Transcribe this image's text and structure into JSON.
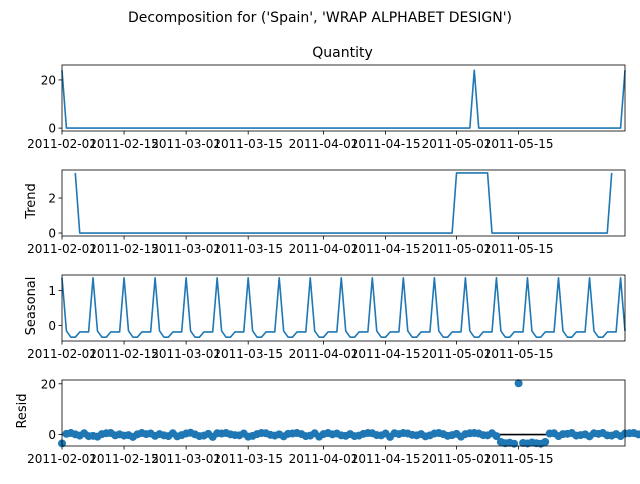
{
  "figure": {
    "suptitle": "Decomposition for ('Spain', 'WRAP ALPHABET DESIGN')"
  },
  "chart_data": [
    {
      "type": "line",
      "title": "Quantity",
      "ylabel": "",
      "x_start": "2011-02-01",
      "x_end": "2011-06-08",
      "xticks": [
        "2011-02-01",
        "2011-02-15",
        "2011-03-01",
        "2011-03-15",
        "2011-04-01",
        "2011-04-15",
        "2011-05-01",
        "2011-05-15"
      ],
      "yticks": [
        0,
        20
      ],
      "ylim": [
        -1.2,
        26.2
      ],
      "series": [
        {
          "color": "#1f77b4",
          "points": [
            [
              "2011-02-01",
              24
            ],
            [
              "2011-02-02",
              0
            ],
            [
              "2011-05-04",
              0
            ],
            [
              "2011-05-05",
              24
            ],
            [
              "2011-05-06",
              0
            ],
            [
              "2011-06-07",
              0
            ],
            [
              "2011-06-08",
              24
            ]
          ]
        }
      ]
    },
    {
      "type": "line",
      "title": "",
      "ylabel": "Trend",
      "x_start": "2011-02-01",
      "x_end": "2011-06-08",
      "xticks": [
        "2011-02-01",
        "2011-02-15",
        "2011-03-01",
        "2011-03-15",
        "2011-04-01",
        "2011-04-15",
        "2011-05-01",
        "2011-05-15"
      ],
      "yticks": [
        0,
        2
      ],
      "ylim": [
        -0.17,
        3.6
      ],
      "series": [
        {
          "color": "#1f77b4",
          "points": [
            [
              "2011-02-04",
              3.43
            ],
            [
              "2011-02-05",
              0
            ],
            [
              "2011-04-30",
              0
            ],
            [
              "2011-05-01",
              3.43
            ],
            [
              "2011-05-08",
              3.43
            ],
            [
              "2011-05-09",
              0
            ],
            [
              "2011-06-04",
              0
            ],
            [
              "2011-06-05",
              3.43
            ]
          ]
        }
      ]
    },
    {
      "type": "line",
      "title": "",
      "ylabel": "Seasonal",
      "x_start": "2011-02-01",
      "x_end": "2011-06-08",
      "xticks": [
        "2011-02-01",
        "2011-02-15",
        "2011-03-01",
        "2011-03-15",
        "2011-04-01",
        "2011-04-15",
        "2011-05-01",
        "2011-05-15"
      ],
      "yticks": [
        0,
        1
      ],
      "ylim": [
        -0.45,
        1.45
      ],
      "period": 7,
      "pattern": [
        1.37,
        -0.16,
        -0.34,
        -0.34,
        -0.19,
        -0.19,
        -0.19
      ],
      "series": [
        {
          "color": "#1f77b4"
        }
      ]
    },
    {
      "type": "scatter",
      "title": "",
      "ylabel": "Resid",
      "x_start": "2011-02-01",
      "x_end": "2011-06-08",
      "xticks": [
        "2011-02-01",
        "2011-02-15",
        "2011-03-01",
        "2011-03-15",
        "2011-04-01",
        "2011-04-15",
        "2011-05-01",
        "2011-05-15"
      ],
      "yticks": [
        0,
        20
      ],
      "ylim": [
        -4.5,
        21.5
      ],
      "baseline": 0,
      "series": [
        {
          "color": "#1f77b4",
          "resid": [
            -3.5,
            0.3,
            0.6,
            0.1,
            -0.4,
            0.5,
            -0.6,
            -0.5,
            -0.8,
            0.2,
            0.5,
            0.6,
            -0.3,
            0.1,
            -0.4,
            -0.2,
            -0.9,
            0.1,
            0.6,
            0.2,
            0.4,
            -0.5,
            0.2,
            -0.3,
            -0.6,
            0.5,
            -0.7,
            -0.2,
            0.4,
            0.7,
            0.1,
            -0.6,
            -0.4,
            0.3,
            -0.9,
            0.5,
            0.4,
            0.6,
            0.1,
            -0.2,
            -0.3,
            0.4,
            -0.8,
            -0.5,
            0.2,
            0.6,
            0.5,
            -0.1,
            -0.4,
            0.1,
            -0.7,
            0.3,
            0.4,
            0.6,
            0.2,
            -0.6,
            -0.4,
            0.5,
            -0.8,
            0.2,
            0.6,
            0.1,
            0.4,
            -0.3,
            -0.5,
            0.2,
            -0.6,
            -0.4,
            0.3,
            0.6,
            0.5,
            -0.2,
            -0.3,
            0.4,
            -0.9,
            0.5,
            0.2,
            0.6,
            0.4,
            -0.1,
            -0.3,
            0.2,
            -0.7,
            -0.3,
            0.4,
            0.6,
            0.2,
            -0.5,
            -0.2,
            0.3,
            -0.8,
            0.2,
            0.5,
            0.6,
            0.4,
            -0.2,
            -0.3,
            0.5,
            -0.6,
            -2.9,
            -3.4,
            -3.2,
            -3.6,
            20.2,
            -3.3,
            -3.5,
            -3.1,
            -3.4,
            -3.6,
            -2.9,
            0.4,
            0.5,
            -0.6,
            0.2,
            0.3,
            0.6,
            -0.4,
            -0.2,
            0.1,
            -0.7,
            0.5,
            0.3,
            0.6,
            -0.3,
            -0.4,
            0.2,
            -0.6,
            0.4,
            0.5,
            0.6,
            0.1,
            -0.2,
            -0.4,
            -0.9,
            0.3,
            0.5,
            -3.5,
            0.4
          ]
        }
      ]
    }
  ]
}
